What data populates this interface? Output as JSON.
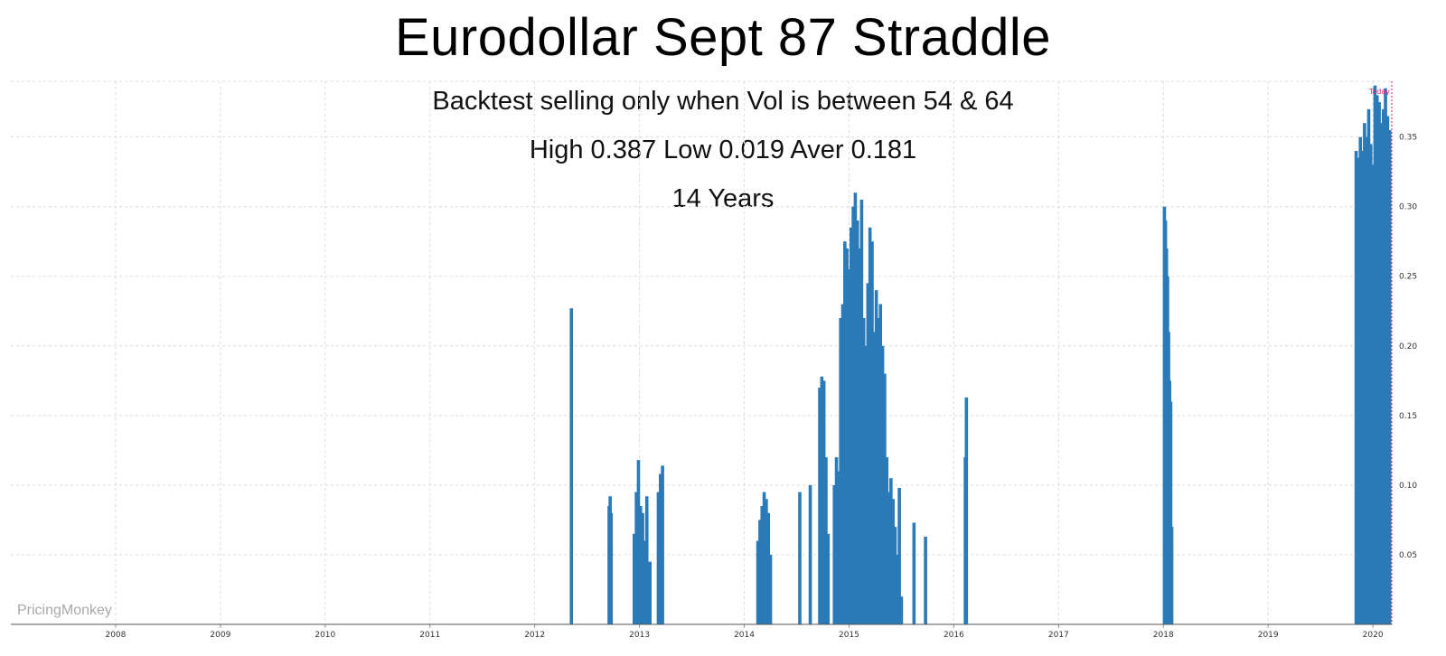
{
  "chart_data": {
    "type": "bar",
    "title": "Eurodollar Sept 87 Straddle",
    "subtitles": [
      "Backtest selling only when Vol is between 54 & 64",
      "High 0.387 Low 0.019 Aver 0.181",
      "14 Years"
    ],
    "watermark": "PricingMonkey",
    "today_label": "Today",
    "series_color": "#2a7ab8",
    "today_color": "#e6196e",
    "grid": true,
    "x_axis": {
      "ticks": [
        "2008",
        "2009",
        "2010",
        "2011",
        "2012",
        "2013",
        "2014",
        "2015",
        "2016",
        "2017",
        "2018",
        "2019",
        "2020"
      ],
      "range": [
        2007.0,
        2020.18
      ]
    },
    "y_axis": {
      "ticks": [
        "0.05",
        "0.10",
        "0.15",
        "0.20",
        "0.25",
        "0.30",
        "0.35"
      ],
      "range": [
        0.0,
        0.39
      ],
      "position": "right"
    },
    "x": [
      2012.35,
      2012.71,
      2012.72,
      2012.73,
      2012.95,
      2012.97,
      2012.99,
      2013.01,
      2013.03,
      2013.05,
      2013.07,
      2013.1,
      2013.18,
      2013.2,
      2013.22,
      2014.13,
      2014.15,
      2014.17,
      2014.19,
      2014.21,
      2014.23,
      2014.25,
      2014.53,
      2014.63,
      2014.72,
      2014.74,
      2014.76,
      2014.78,
      2014.8,
      2014.86,
      2014.88,
      2014.9,
      2014.92,
      2014.94,
      2014.96,
      2014.98,
      2015.0,
      2015.02,
      2015.04,
      2015.06,
      2015.08,
      2015.1,
      2015.12,
      2015.14,
      2015.16,
      2015.18,
      2015.2,
      2015.22,
      2015.24,
      2015.26,
      2015.28,
      2015.3,
      2015.32,
      2015.34,
      2015.36,
      2015.38,
      2015.4,
      2015.42,
      2015.44,
      2015.46,
      2015.48,
      2015.5,
      2015.62,
      2015.73,
      2016.11,
      2016.12,
      2018.01,
      2018.02,
      2018.03,
      2018.04,
      2018.05,
      2018.06,
      2018.07,
      2018.08,
      2019.84,
      2019.86,
      2019.88,
      2019.9,
      2019.92,
      2019.94,
      2019.96,
      2019.98,
      2020.0,
      2020.02,
      2020.04,
      2020.06,
      2020.08,
      2020.1,
      2020.12,
      2020.14,
      2020.16
    ],
    "values": [
      0.227,
      0.085,
      0.092,
      0.08,
      0.065,
      0.095,
      0.118,
      0.085,
      0.08,
      0.06,
      0.092,
      0.045,
      0.095,
      0.108,
      0.114,
      0.06,
      0.075,
      0.085,
      0.095,
      0.09,
      0.08,
      0.05,
      0.095,
      0.1,
      0.17,
      0.178,
      0.175,
      0.12,
      0.065,
      0.1,
      0.12,
      0.11,
      0.22,
      0.23,
      0.275,
      0.27,
      0.255,
      0.285,
      0.3,
      0.31,
      0.29,
      0.27,
      0.305,
      0.22,
      0.2,
      0.245,
      0.285,
      0.275,
      0.21,
      0.24,
      0.22,
      0.23,
      0.2,
      0.18,
      0.12,
      0.095,
      0.105,
      0.09,
      0.07,
      0.05,
      0.098,
      0.02,
      0.073,
      0.063,
      0.12,
      0.163,
      0.3,
      0.29,
      0.27,
      0.25,
      0.21,
      0.175,
      0.16,
      0.07,
      0.34,
      0.335,
      0.35,
      0.34,
      0.36,
      0.35,
      0.37,
      0.345,
      0.33,
      0.387,
      0.38,
      0.375,
      0.36,
      0.37,
      0.385,
      0.365,
      0.355
    ]
  }
}
